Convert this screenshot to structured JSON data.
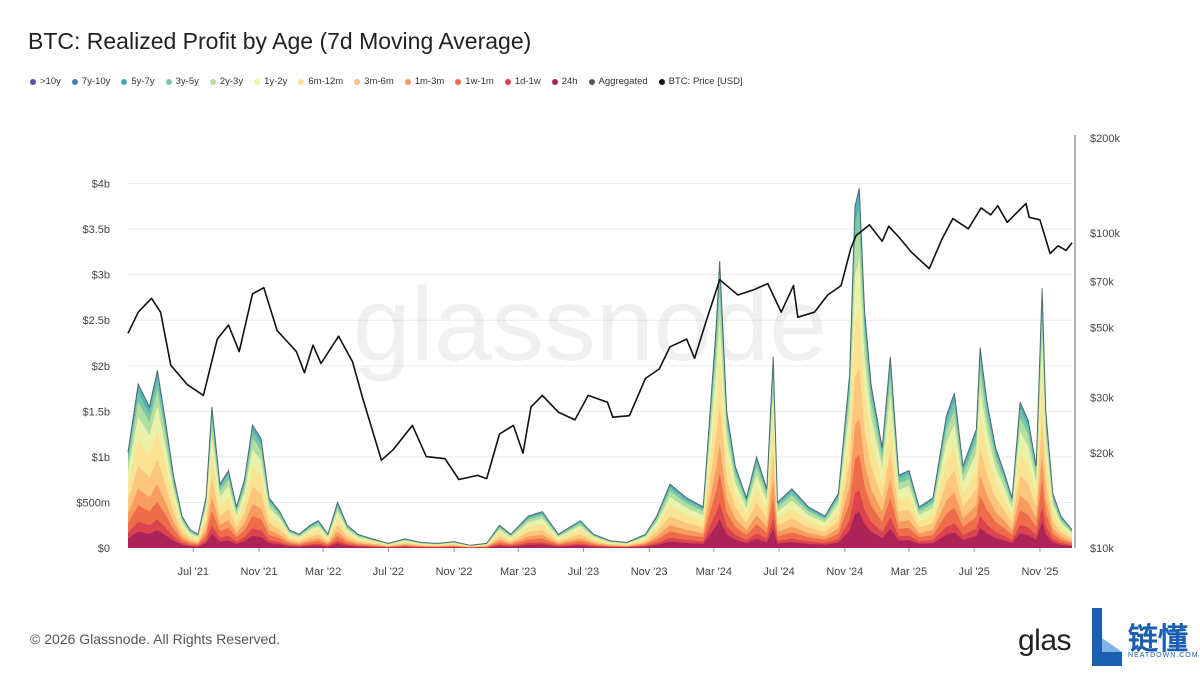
{
  "title": "BTC: Realized Profit by Age (7d Moving Average)",
  "legend": [
    {
      "label": ">10y",
      "color": "#5b4ea3"
    },
    {
      "label": "7y-10y",
      "color": "#3f7fb8"
    },
    {
      "label": "5y-7y",
      "color": "#45aab0"
    },
    {
      "label": "3y-5y",
      "color": "#7cc9a6"
    },
    {
      "label": "2y-3y",
      "color": "#b7e0a0"
    },
    {
      "label": "1y-2y",
      "color": "#eef3a8"
    },
    {
      "label": "6m-12m",
      "color": "#fbe393"
    },
    {
      "label": "3m-6m",
      "color": "#fcc37a"
    },
    {
      "label": "1m-3m",
      "color": "#f7975c"
    },
    {
      "label": "1w-1m",
      "color": "#ee6849"
    },
    {
      "label": "1d-1w",
      "color": "#d9404e"
    },
    {
      "label": "24h",
      "color": "#a82258"
    },
    {
      "label": "Aggregated",
      "color": "#555555"
    },
    {
      "label": "BTC: Price [USD]",
      "color": "#111111"
    }
  ],
  "watermark": "glassnode",
  "footer": "© 2026 Glassnode. All Rights Reserved.",
  "brand": {
    "logo_text": "glas",
    "cn_text": "链懂",
    "sub_text": "NEATDOWN.COM"
  },
  "chart_data": {
    "type": "area",
    "x_start": "2021-03-01",
    "x_end": "2025-12-31",
    "x_ticks": [
      "Jul '21",
      "Nov '21",
      "Mar '22",
      "Jul '22",
      "Nov '22",
      "Mar '23",
      "Jul '23",
      "Nov '23",
      "Mar '24",
      "Jul '24",
      "Nov '24",
      "Mar '25",
      "Jul '25",
      "Nov '25"
    ],
    "y_left": {
      "ticks": [
        "$0",
        "$500m",
        "$1b",
        "$1.5b",
        "$2b",
        "$2.5b",
        "$3b",
        "$3.5b",
        "$4b"
      ],
      "max_b": 4.5
    },
    "y_right": {
      "scale": "log",
      "ticks": [
        "$10k",
        "$20k",
        "$30k",
        "$50k",
        "$70k",
        "$100k",
        "$200k"
      ],
      "min": 10000,
      "max": 200000
    },
    "profit_aggregated_b": [
      [
        "2021-03-01",
        1.05
      ],
      [
        "2021-03-20",
        1.8
      ],
      [
        "2021-04-10",
        1.55
      ],
      [
        "2021-04-25",
        1.95
      ],
      [
        "2021-05-10",
        1.4
      ],
      [
        "2021-05-25",
        0.8
      ],
      [
        "2021-06-10",
        0.35
      ],
      [
        "2021-06-25",
        0.2
      ],
      [
        "2021-07-10",
        0.15
      ],
      [
        "2021-07-25",
        0.55
      ],
      [
        "2021-08-05",
        1.55
      ],
      [
        "2021-08-20",
        0.7
      ],
      [
        "2021-09-05",
        0.85
      ],
      [
        "2021-09-20",
        0.45
      ],
      [
        "2021-10-05",
        0.75
      ],
      [
        "2021-10-20",
        1.35
      ],
      [
        "2021-11-05",
        1.2
      ],
      [
        "2021-11-20",
        0.55
      ],
      [
        "2021-12-10",
        0.4
      ],
      [
        "2021-12-28",
        0.2
      ],
      [
        "2022-01-15",
        0.15
      ],
      [
        "2022-02-05",
        0.25
      ],
      [
        "2022-02-20",
        0.3
      ],
      [
        "2022-03-10",
        0.15
      ],
      [
        "2022-03-28",
        0.5
      ],
      [
        "2022-04-15",
        0.25
      ],
      [
        "2022-05-05",
        0.15
      ],
      [
        "2022-06-01",
        0.1
      ],
      [
        "2022-07-01",
        0.05
      ],
      [
        "2022-08-01",
        0.1
      ],
      [
        "2022-09-01",
        0.06
      ],
      [
        "2022-10-01",
        0.05
      ],
      [
        "2022-11-01",
        0.07
      ],
      [
        "2022-12-01",
        0.03
      ],
      [
        "2023-01-01",
        0.05
      ],
      [
        "2023-01-25",
        0.25
      ],
      [
        "2023-02-15",
        0.15
      ],
      [
        "2023-03-20",
        0.35
      ],
      [
        "2023-04-15",
        0.4
      ],
      [
        "2023-05-15",
        0.15
      ],
      [
        "2023-06-25",
        0.3
      ],
      [
        "2023-07-20",
        0.15
      ],
      [
        "2023-08-20",
        0.08
      ],
      [
        "2023-09-20",
        0.06
      ],
      [
        "2023-10-25",
        0.15
      ],
      [
        "2023-11-15",
        0.35
      ],
      [
        "2023-12-10",
        0.7
      ],
      [
        "2024-01-10",
        0.55
      ],
      [
        "2024-02-10",
        0.45
      ],
      [
        "2024-03-05",
        2.4
      ],
      [
        "2024-03-12",
        3.15
      ],
      [
        "2024-03-25",
        1.5
      ],
      [
        "2024-04-10",
        0.9
      ],
      [
        "2024-05-01",
        0.55
      ],
      [
        "2024-05-20",
        1.0
      ],
      [
        "2024-06-08",
        0.65
      ],
      [
        "2024-06-20",
        2.1
      ],
      [
        "2024-06-28",
        0.5
      ],
      [
        "2024-07-25",
        0.65
      ],
      [
        "2024-08-25",
        0.45
      ],
      [
        "2024-09-25",
        0.35
      ],
      [
        "2024-10-20",
        0.6
      ],
      [
        "2024-11-10",
        1.9
      ],
      [
        "2024-11-20",
        3.75
      ],
      [
        "2024-11-28",
        3.95
      ],
      [
        "2024-12-08",
        2.6
      ],
      [
        "2024-12-20",
        1.8
      ],
      [
        "2025-01-10",
        1.1
      ],
      [
        "2025-01-25",
        2.1
      ],
      [
        "2025-02-10",
        0.8
      ],
      [
        "2025-03-01",
        0.85
      ],
      [
        "2025-03-20",
        0.45
      ],
      [
        "2025-04-15",
        0.55
      ],
      [
        "2025-05-10",
        1.45
      ],
      [
        "2025-05-25",
        1.7
      ],
      [
        "2025-06-10",
        0.9
      ],
      [
        "2025-07-05",
        1.3
      ],
      [
        "2025-07-12",
        2.2
      ],
      [
        "2025-07-25",
        1.6
      ],
      [
        "2025-08-10",
        1.1
      ],
      [
        "2025-08-25",
        0.85
      ],
      [
        "2025-09-10",
        0.55
      ],
      [
        "2025-09-25",
        1.6
      ],
      [
        "2025-10-10",
        1.4
      ],
      [
        "2025-10-25",
        0.9
      ],
      [
        "2025-11-05",
        2.85
      ],
      [
        "2025-11-12",
        1.5
      ],
      [
        "2025-11-25",
        0.6
      ],
      [
        "2025-12-10",
        0.35
      ],
      [
        "2025-12-31",
        0.2
      ]
    ],
    "btc_price_usd": [
      [
        "2021-03-01",
        48000
      ],
      [
        "2021-03-20",
        56000
      ],
      [
        "2021-04-14",
        62000
      ],
      [
        "2021-05-01",
        56000
      ],
      [
        "2021-05-20",
        38000
      ],
      [
        "2021-06-20",
        33000
      ],
      [
        "2021-07-20",
        30500
      ],
      [
        "2021-08-15",
        46000
      ],
      [
        "2021-09-05",
        51000
      ],
      [
        "2021-09-25",
        42000
      ],
      [
        "2021-10-20",
        64000
      ],
      [
        "2021-11-10",
        67000
      ],
      [
        "2021-12-05",
        49000
      ],
      [
        "2022-01-10",
        42000
      ],
      [
        "2022-01-25",
        36000
      ],
      [
        "2022-02-10",
        44000
      ],
      [
        "2022-02-25",
        38500
      ],
      [
        "2022-03-30",
        47000
      ],
      [
        "2022-04-25",
        39000
      ],
      [
        "2022-05-15",
        29500
      ],
      [
        "2022-06-18",
        19000
      ],
      [
        "2022-07-10",
        20500
      ],
      [
        "2022-08-15",
        24500
      ],
      [
        "2022-09-10",
        19500
      ],
      [
        "2022-10-15",
        19200
      ],
      [
        "2022-11-10",
        16500
      ],
      [
        "2022-12-15",
        17000
      ],
      [
        "2023-01-01",
        16600
      ],
      [
        "2023-01-25",
        23000
      ],
      [
        "2023-02-20",
        24500
      ],
      [
        "2023-03-10",
        20000
      ],
      [
        "2023-03-25",
        28000
      ],
      [
        "2023-04-15",
        30500
      ],
      [
        "2023-05-15",
        27000
      ],
      [
        "2023-06-15",
        25500
      ],
      [
        "2023-07-10",
        30500
      ],
      [
        "2023-08-15",
        29000
      ],
      [
        "2023-08-25",
        26000
      ],
      [
        "2023-09-25",
        26300
      ],
      [
        "2023-10-25",
        34500
      ],
      [
        "2023-11-20",
        37000
      ],
      [
        "2023-12-10",
        43500
      ],
      [
        "2024-01-10",
        46000
      ],
      [
        "2024-01-25",
        40000
      ],
      [
        "2024-02-15",
        52000
      ],
      [
        "2024-03-12",
        71000
      ],
      [
        "2024-04-15",
        63500
      ],
      [
        "2024-05-15",
        66000
      ],
      [
        "2024-06-10",
        69000
      ],
      [
        "2024-07-05",
        56000
      ],
      [
        "2024-07-28",
        68000
      ],
      [
        "2024-08-05",
        54000
      ],
      [
        "2024-09-05",
        56000
      ],
      [
        "2024-09-30",
        63500
      ],
      [
        "2024-10-25",
        68000
      ],
      [
        "2024-11-12",
        89000
      ],
      [
        "2024-11-22",
        98000
      ],
      [
        "2024-12-17",
        106000
      ],
      [
        "2025-01-10",
        94000
      ],
      [
        "2025-01-22",
        105000
      ],
      [
        "2025-02-10",
        97000
      ],
      [
        "2025-03-05",
        87000
      ],
      [
        "2025-04-08",
        77000
      ],
      [
        "2025-05-01",
        95000
      ],
      [
        "2025-05-22",
        111000
      ],
      [
        "2025-06-20",
        103000
      ],
      [
        "2025-07-14",
        120000
      ],
      [
        "2025-08-01",
        114000
      ],
      [
        "2025-08-14",
        122000
      ],
      [
        "2025-09-01",
        108000
      ],
      [
        "2025-10-06",
        124000
      ],
      [
        "2025-10-12",
        112000
      ],
      [
        "2025-11-01",
        110000
      ],
      [
        "2025-11-20",
        86000
      ],
      [
        "2025-12-05",
        91000
      ],
      [
        "2025-12-20",
        88000
      ],
      [
        "2025-12-31",
        93000
      ]
    ]
  }
}
